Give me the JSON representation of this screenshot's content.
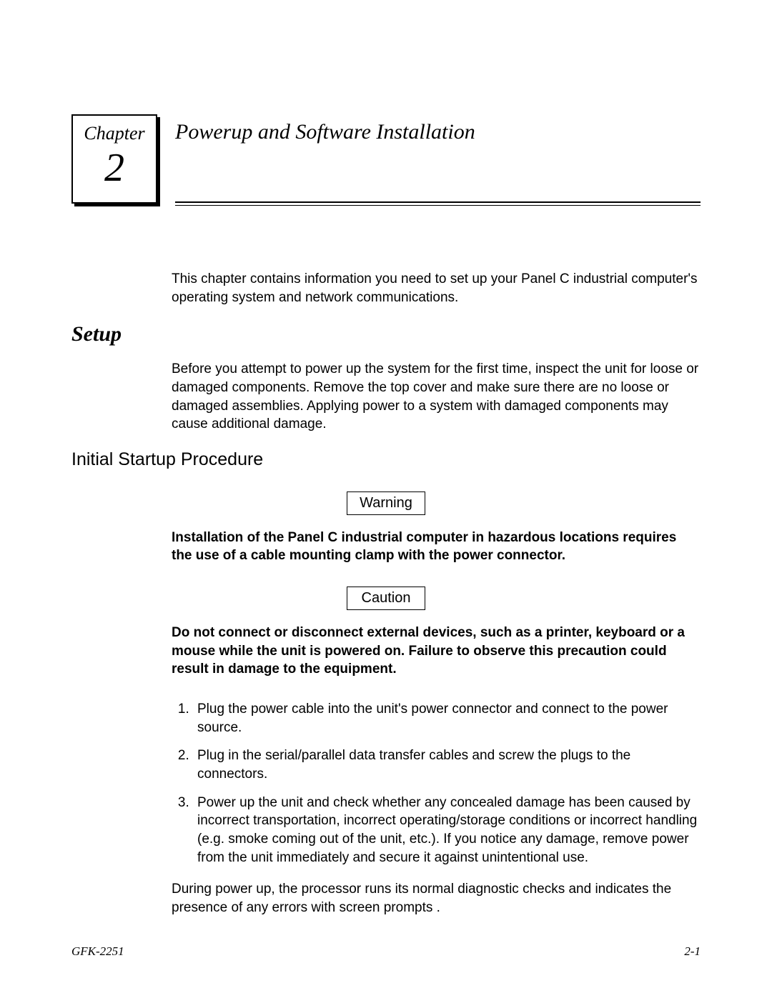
{
  "chapter": {
    "label": "Chapter",
    "number": "2",
    "title": "Powerup and Software Installation"
  },
  "intro": "This chapter contains information you need to set up your Panel C industrial computer's operating system and network communications.",
  "setup": {
    "heading": "Setup",
    "text": "Before you attempt to power up the system for the first time, inspect the unit for loose or damaged components. Remove the top cover and make sure there are no loose or damaged assemblies. Applying power to a system with damaged components may cause additional damage."
  },
  "procedure": {
    "heading": "Initial Startup Procedure",
    "warning": {
      "label": "Warning",
      "text": "Installation of the Panel C industrial computer in hazardous locations requires the use of a cable mounting clamp with the power connector."
    },
    "caution": {
      "label": "Caution",
      "text": "Do not connect or disconnect external devices, such as a printer, keyboard or a mouse while the unit is powered on. Failure to observe this precaution could result in damage to the equipment."
    },
    "steps": [
      "Plug the power cable into the unit's power connector and connect to the power source.",
      "Plug in the serial/parallel data transfer cables and screw the plugs to the connectors.",
      "Power up the unit and check whether any concealed damage has been caused by incorrect transportation, incorrect operating/storage conditions or incorrect handling (e.g. smoke coming out of the unit, etc.). If you notice any damage, remove power from the unit immediately and secure it against unintentional use."
    ],
    "closing": "During power up, the processor runs its normal diagnostic checks and indicates the presence of any errors with screen prompts ."
  },
  "footer": {
    "left": "GFK-2251",
    "right": "2-1"
  }
}
